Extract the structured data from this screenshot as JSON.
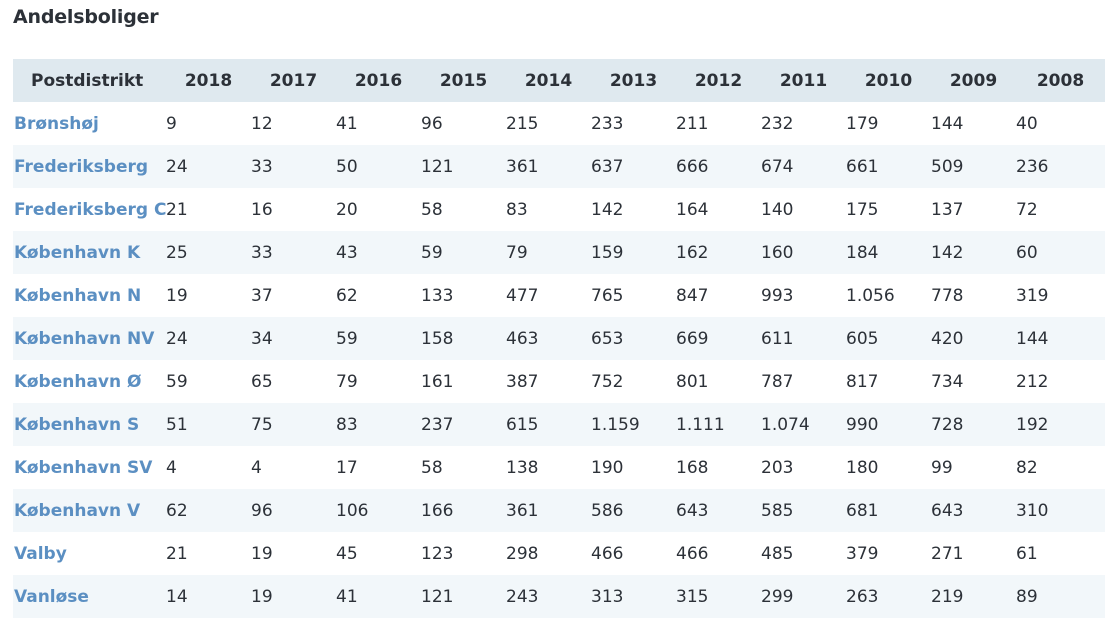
{
  "title": "Andelsboliger",
  "header": {
    "first": "Postdistrikt",
    "years": [
      "2018",
      "2017",
      "2016",
      "2015",
      "2014",
      "2013",
      "2012",
      "2011",
      "2010",
      "2009",
      "2008"
    ]
  },
  "rows": [
    {
      "name": "Brønshøj",
      "values": [
        "9",
        "12",
        "41",
        "96",
        "215",
        "233",
        "211",
        "232",
        "179",
        "144",
        "40"
      ]
    },
    {
      "name": "Frederiksberg",
      "values": [
        "24",
        "33",
        "50",
        "121",
        "361",
        "637",
        "666",
        "674",
        "661",
        "509",
        "236"
      ]
    },
    {
      "name": "Frederiksberg C",
      "values": [
        "21",
        "16",
        "20",
        "58",
        "83",
        "142",
        "164",
        "140",
        "175",
        "137",
        "72"
      ]
    },
    {
      "name": "København K",
      "values": [
        "25",
        "33",
        "43",
        "59",
        "79",
        "159",
        "162",
        "160",
        "184",
        "142",
        "60"
      ]
    },
    {
      "name": "København N",
      "values": [
        "19",
        "37",
        "62",
        "133",
        "477",
        "765",
        "847",
        "993",
        "1.056",
        "778",
        "319"
      ]
    },
    {
      "name": "København NV",
      "values": [
        "24",
        "34",
        "59",
        "158",
        "463",
        "653",
        "669",
        "611",
        "605",
        "420",
        "144"
      ]
    },
    {
      "name": "København Ø",
      "values": [
        "59",
        "65",
        "79",
        "161",
        "387",
        "752",
        "801",
        "787",
        "817",
        "734",
        "212"
      ]
    },
    {
      "name": "København S",
      "values": [
        "51",
        "75",
        "83",
        "237",
        "615",
        "1.159",
        "1.111",
        "1.074",
        "990",
        "728",
        "192"
      ]
    },
    {
      "name": "København SV",
      "values": [
        "4",
        "4",
        "17",
        "58",
        "138",
        "190",
        "168",
        "203",
        "180",
        "99",
        "82"
      ]
    },
    {
      "name": "København V",
      "values": [
        "62",
        "96",
        "106",
        "166",
        "361",
        "586",
        "643",
        "585",
        "681",
        "643",
        "310"
      ]
    },
    {
      "name": "Valby",
      "values": [
        "21",
        "19",
        "45",
        "123",
        "298",
        "466",
        "466",
        "485",
        "379",
        "271",
        "61"
      ]
    },
    {
      "name": "Vanløse",
      "values": [
        "14",
        "19",
        "41",
        "121",
        "243",
        "313",
        "315",
        "299",
        "263",
        "219",
        "89"
      ]
    }
  ]
}
